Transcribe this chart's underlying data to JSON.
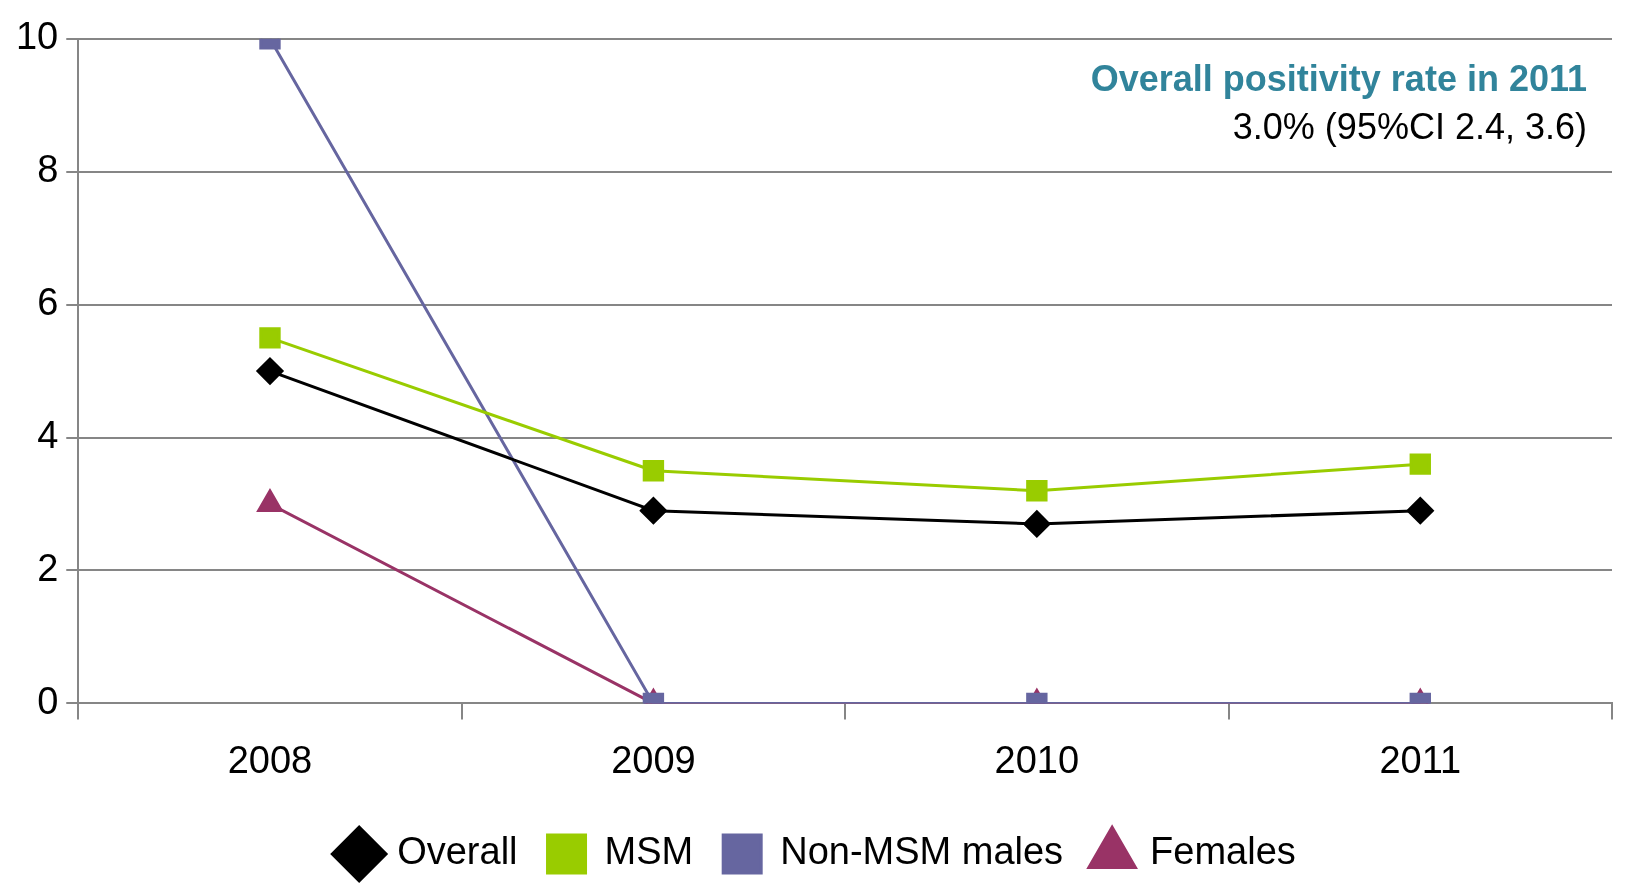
{
  "chart_data": {
    "type": "line",
    "categories": [
      "2008",
      "2009",
      "2010",
      "2011"
    ],
    "series": [
      {
        "name": "Overall",
        "color": "#000000",
        "marker": "diamond",
        "values": [
          5.0,
          2.9,
          2.7,
          2.9
        ]
      },
      {
        "name": "MSM",
        "color": "#99cc00",
        "marker": "square",
        "values": [
          5.5,
          3.5,
          3.2,
          3.6
        ]
      },
      {
        "name": "Non-MSM males",
        "color": "#6666a0",
        "marker": "square",
        "values": [
          10,
          0,
          0,
          0
        ]
      },
      {
        "name": "Females",
        "color": "#993366",
        "marker": "triangle",
        "values": [
          3.0,
          0,
          0,
          0
        ]
      }
    ],
    "ylim": [
      0,
      10
    ],
    "yticks": [
      0,
      2,
      4,
      6,
      8,
      10
    ],
    "grid": "y",
    "legend": "bottom",
    "annotations": [
      "Overall positivity rate in 2011",
      "3.0% (95%CI 2.4, 3.6)"
    ]
  }
}
